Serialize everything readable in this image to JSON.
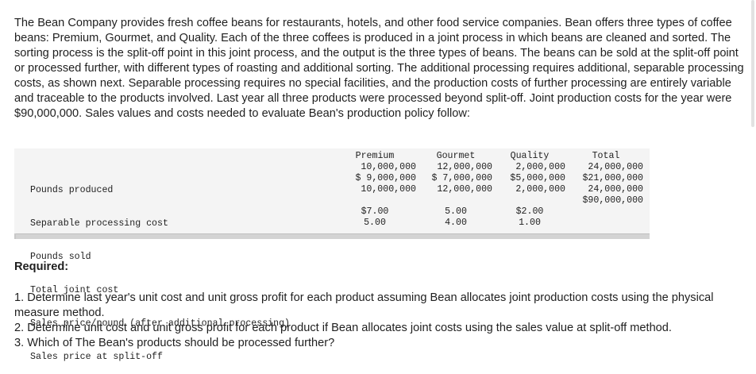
{
  "intro_text": "The Bean Company provides fresh coffee beans for restaurants, hotels, and other food service companies. Bean offers three types of coffee beans: Premium, Gourmet, and Quality. Each of the three coffees is produced in a joint process in which beans are cleaned and sorted. The sorting process is the split-off point in this joint process, and the output is the three types of beans. The beans can be sold at the split-off point or processed further, with different types of roasting and additional sorting. The additional processing requires additional, separable processing costs, as shown next. Separable processing requires no special facilities, and the production costs of further processing are entirely variable and traceable to the products involved. Last year all three products were processed beyond split-off. Joint production costs for the year were $90,000,000. Sales values and costs needed to evaluate Bean's production policy follow:",
  "table": {
    "row_labels": [
      "Pounds produced",
      "Separable processing cost",
      "Pounds sold",
      "Total joint cost",
      "Sales price/pound (after additional processing)",
      "Sales price at split-off"
    ],
    "columns": [
      {
        "header": "Premium",
        "cells": [
          "10,000,000",
          "$ 9,000,000",
          "10,000,000",
          "",
          "$7.00",
          "5.00"
        ]
      },
      {
        "header": "Gourmet",
        "cells": [
          "12,000,000",
          "$ 7,000,000",
          "12,000,000",
          "",
          "5.00",
          "4.00"
        ]
      },
      {
        "header": "Quality",
        "cells": [
          "2,000,000",
          "$5,000,000",
          "2,000,000",
          "",
          "$2.00",
          "1.00"
        ]
      },
      {
        "header": "Total",
        "cells": [
          "24,000,000",
          "$21,000,000",
          "24,000,000",
          "$90,000,000",
          "",
          ""
        ]
      }
    ]
  },
  "required_heading": "Required:",
  "questions": [
    "1. Determine last year's unit cost and unit gross profit for each product assuming Bean allocates joint production costs using the physical measure method.",
    "2. Determine unit cost and unit gross profit for each product if Bean allocates joint costs using the sales value at split-off method.",
    "3. Which of The Bean's products should be processed further?"
  ]
}
